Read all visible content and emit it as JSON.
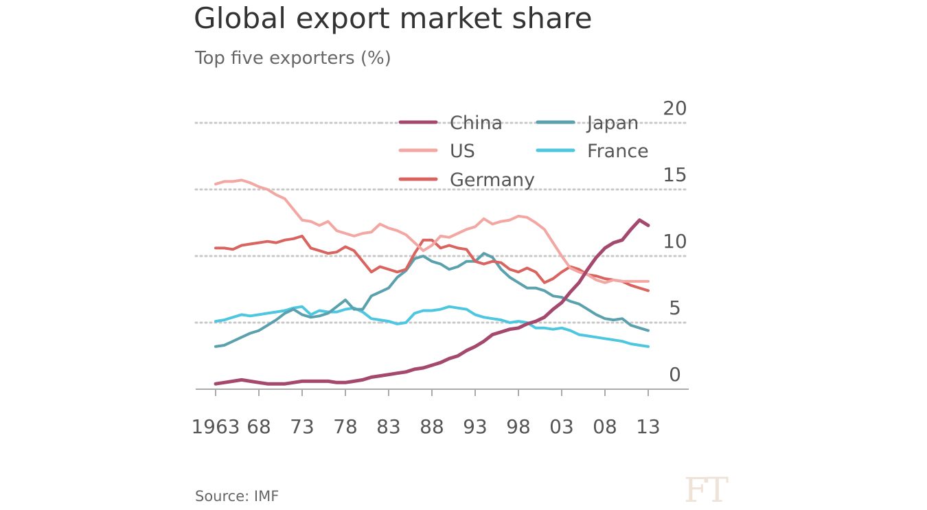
{
  "title": "Global export market share",
  "subtitle": "Top five exporters (%)",
  "source": "Source: IMF",
  "logo": "FT",
  "chart_data": {
    "type": "line",
    "title": "Global export market share",
    "subtitle": "Top five exporters (%)",
    "xlabel": "",
    "ylabel": "",
    "xlim": [
      1962,
      2017
    ],
    "ylim": [
      0,
      20
    ],
    "x_ticks": [
      1963,
      1968,
      1973,
      1978,
      1983,
      1988,
      1993,
      1998,
      2003,
      2008,
      2013
    ],
    "x_tick_labels": [
      "1963",
      "68",
      "73",
      "78",
      "83",
      "88",
      "93",
      "98",
      "03",
      "08",
      "13"
    ],
    "y_ticks": [
      0,
      5,
      10,
      15,
      20
    ],
    "y_tick_labels": [
      "0",
      "5",
      "10",
      "15",
      "20"
    ],
    "grid": "horizontal dotted",
    "legend_placement": "top-right",
    "x": [
      1963,
      1964,
      1965,
      1966,
      1967,
      1968,
      1969,
      1970,
      1971,
      1972,
      1973,
      1974,
      1975,
      1976,
      1977,
      1978,
      1979,
      1980,
      1981,
      1982,
      1983,
      1984,
      1985,
      1986,
      1987,
      1988,
      1989,
      1990,
      1991,
      1992,
      1993,
      1994,
      1995,
      1996,
      1997,
      1998,
      1999,
      2000,
      2001,
      2002,
      2003,
      2004,
      2005,
      2006,
      2007,
      2008,
      2009,
      2010,
      2011,
      2012,
      2013
    ],
    "series": [
      {
        "name": "China",
        "color": "#a5486e",
        "width": 5,
        "values": [
          0.4,
          0.5,
          0.6,
          0.7,
          0.6,
          0.5,
          0.4,
          0.4,
          0.4,
          0.5,
          0.6,
          0.6,
          0.6,
          0.6,
          0.5,
          0.5,
          0.6,
          0.7,
          0.9,
          1.0,
          1.1,
          1.2,
          1.3,
          1.5,
          1.6,
          1.8,
          2.0,
          2.3,
          2.5,
          2.9,
          3.2,
          3.6,
          4.1,
          4.3,
          4.5,
          4.6,
          4.9,
          5.1,
          5.4,
          6.0,
          6.5,
          7.3,
          8.0,
          9.0,
          9.9,
          10.6,
          11.0,
          11.2,
          12.0,
          12.7,
          12.3
        ]
      },
      {
        "name": "US",
        "color": "#f2a7a3",
        "width": 4,
        "values": [
          15.4,
          15.6,
          15.6,
          15.7,
          15.5,
          15.2,
          15.0,
          14.6,
          14.3,
          13.5,
          12.7,
          12.6,
          12.3,
          12.6,
          11.9,
          11.7,
          11.5,
          11.7,
          11.8,
          12.4,
          12.1,
          11.9,
          11.6,
          11.0,
          10.4,
          10.8,
          11.5,
          11.4,
          11.7,
          12.0,
          12.2,
          12.8,
          12.4,
          12.6,
          12.7,
          13.0,
          12.9,
          12.5,
          12.0,
          11.0,
          10.0,
          9.1,
          8.8,
          8.6,
          8.2,
          8.0,
          8.2,
          8.1,
          8.1,
          8.1,
          8.1
        ]
      },
      {
        "name": "Germany",
        "color": "#d9635e",
        "width": 4,
        "values": [
          10.6,
          10.6,
          10.5,
          10.8,
          10.9,
          11.0,
          11.1,
          11.0,
          11.2,
          11.3,
          11.5,
          10.6,
          10.4,
          10.2,
          10.3,
          10.7,
          10.4,
          9.6,
          8.8,
          9.2,
          9.0,
          8.8,
          9.0,
          10.2,
          11.2,
          11.2,
          10.6,
          10.8,
          10.6,
          10.5,
          9.6,
          9.4,
          9.6,
          9.5,
          9.0,
          8.8,
          9.1,
          8.8,
          8.0,
          8.3,
          8.8,
          9.2,
          9.0,
          8.6,
          8.5,
          8.3,
          8.2,
          8.1,
          7.8,
          7.6,
          7.4
        ]
      },
      {
        "name": "Japan",
        "color": "#5ba1ad",
        "width": 4,
        "values": [
          3.2,
          3.3,
          3.6,
          3.9,
          4.2,
          4.4,
          4.8,
          5.2,
          5.7,
          6.0,
          5.6,
          5.4,
          5.5,
          5.7,
          6.2,
          6.7,
          6.0,
          6.0,
          7.0,
          7.3,
          7.6,
          8.4,
          8.9,
          9.8,
          10.0,
          9.6,
          9.4,
          9.0,
          9.2,
          9.6,
          9.6,
          10.2,
          9.9,
          9.0,
          8.4,
          8.0,
          7.6,
          7.6,
          7.4,
          7.0,
          6.9,
          6.6,
          6.4,
          6.0,
          5.6,
          5.3,
          5.2,
          5.3,
          4.8,
          4.6,
          4.4
        ]
      },
      {
        "name": "France",
        "color": "#4dc7e0",
        "width": 4,
        "values": [
          5.1,
          5.2,
          5.4,
          5.6,
          5.5,
          5.6,
          5.7,
          5.8,
          5.9,
          6.1,
          6.2,
          5.6,
          5.9,
          5.8,
          5.8,
          6.0,
          6.1,
          5.8,
          5.3,
          5.2,
          5.1,
          4.9,
          5.0,
          5.7,
          5.9,
          5.9,
          6.0,
          6.2,
          6.1,
          6.0,
          5.6,
          5.4,
          5.3,
          5.2,
          5.0,
          5.1,
          5.0,
          4.6,
          4.6,
          4.5,
          4.6,
          4.4,
          4.1,
          4.0,
          3.9,
          3.8,
          3.7,
          3.6,
          3.4,
          3.3,
          3.2
        ]
      }
    ]
  }
}
